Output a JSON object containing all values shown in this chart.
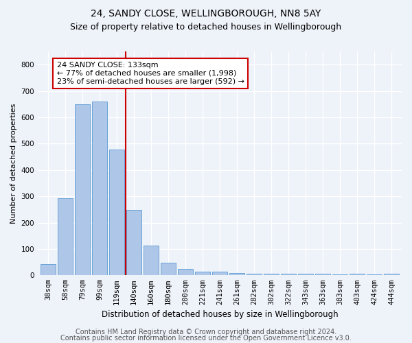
{
  "title1": "24, SANDY CLOSE, WELLINGBOROUGH, NN8 5AY",
  "title2": "Size of property relative to detached houses in Wellingborough",
  "xlabel": "Distribution of detached houses by size in Wellingborough",
  "ylabel": "Number of detached properties",
  "categories": [
    "38sqm",
    "58sqm",
    "79sqm",
    "99sqm",
    "119sqm",
    "140sqm",
    "160sqm",
    "180sqm",
    "200sqm",
    "221sqm",
    "241sqm",
    "261sqm",
    "282sqm",
    "302sqm",
    "322sqm",
    "343sqm",
    "363sqm",
    "383sqm",
    "403sqm",
    "424sqm",
    "444sqm"
  ],
  "values": [
    42,
    292,
    650,
    660,
    478,
    248,
    112,
    48,
    25,
    15,
    13,
    8,
    5,
    7,
    5,
    5,
    5,
    3,
    5,
    3,
    5
  ],
  "bar_color": "#aec6e8",
  "bar_edge_color": "#5b9bd5",
  "vline_color": "#cc0000",
  "annotation_line1": "24 SANDY CLOSE: 133sqm",
  "annotation_line2": "← 77% of detached houses are smaller (1,998)",
  "annotation_line3": "23% of semi-detached houses are larger (592) →",
  "annotation_box_color": "#cc0000",
  "annotation_box_bg": "#ffffff",
  "ylim": [
    0,
    850
  ],
  "yticks": [
    0,
    100,
    200,
    300,
    400,
    500,
    600,
    700,
    800
  ],
  "footer1": "Contains HM Land Registry data © Crown copyright and database right 2024.",
  "footer2": "Contains public sector information licensed under the Open Government Licence v3.0.",
  "bg_color": "#eef2f9",
  "plot_bg_color": "#eef2f9",
  "grid_color": "#ffffff",
  "title1_fontsize": 10,
  "title2_fontsize": 9,
  "xlabel_fontsize": 8.5,
  "ylabel_fontsize": 8,
  "tick_fontsize": 7.5,
  "footer_fontsize": 7,
  "ann_fontsize": 8
}
